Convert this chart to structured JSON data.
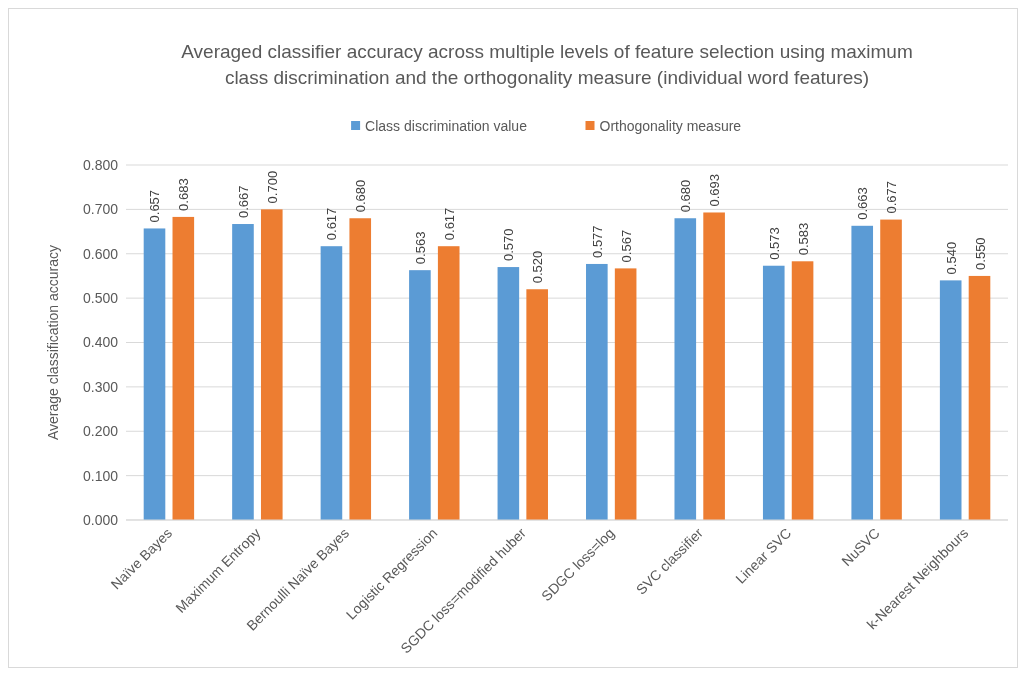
{
  "chart_data": {
    "type": "bar",
    "title": "Averaged classifier accuracy across multiple levels of feature selection using maximum class discrimination and the orthogonality measure (individual word features)",
    "ylabel": "Average classification accuracy",
    "categories": [
      "Naïve Bayes",
      "Maximum Entropy",
      "Bernoulli Naïve Bayes",
      "Logistic Regression",
      "SGDC  loss=modified huber",
      "SDGC loss=log",
      "SVC classifier",
      "Linear SVC",
      "NuSVC",
      "k-Nearest Neighbours"
    ],
    "series": [
      {
        "name": "Class discrimination value",
        "color": "#5b9bd5",
        "values": [
          0.657,
          0.667,
          0.617,
          0.563,
          0.57,
          0.577,
          0.68,
          0.573,
          0.663,
          0.54
        ],
        "value_labels": [
          "0.657",
          "0.667",
          "0.617",
          "0.563",
          "0.570",
          "0.577",
          "0.680",
          "0.573",
          "0.663",
          "0.540"
        ]
      },
      {
        "name": "Orthogonality measure",
        "color": "#ed7d31",
        "values": [
          0.683,
          0.7,
          0.68,
          0.617,
          0.52,
          0.567,
          0.693,
          0.583,
          0.677,
          0.55
        ],
        "value_labels": [
          "0.683",
          "0.700",
          "0.680",
          "0.617",
          "0.520",
          "0.567",
          "0.693",
          "0.583",
          "0.677",
          "0.550"
        ]
      }
    ],
    "ylim": [
      0,
      0.8
    ],
    "yticks": [
      {
        "value": 0,
        "label": "0.000"
      },
      {
        "value": 0.1,
        "label": "0.100"
      },
      {
        "value": 0.2,
        "label": "0.200"
      },
      {
        "value": 0.3,
        "label": "0.300"
      },
      {
        "value": 0.4,
        "label": "0.400"
      },
      {
        "value": 0.5,
        "label": "0.500"
      },
      {
        "value": 0.6,
        "label": "0.600"
      },
      {
        "value": 0.7,
        "label": "0.700"
      },
      {
        "value": 0.8,
        "label": "0.800"
      }
    ],
    "grid": "y",
    "legend": "top"
  }
}
